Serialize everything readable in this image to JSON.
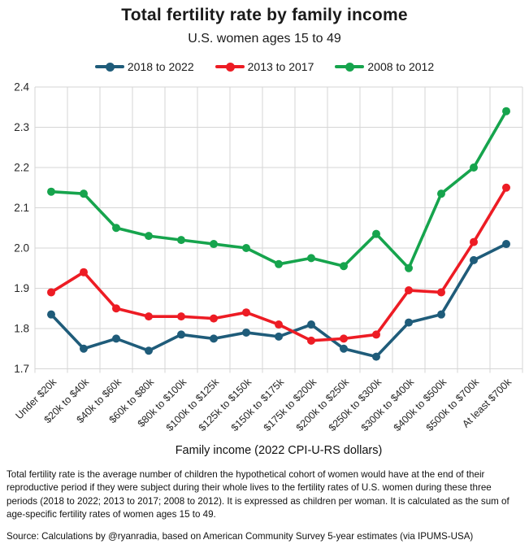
{
  "title": "Total fertility rate by family income",
  "subtitle": "U.S. women ages 15 to 49",
  "chart_data": {
    "type": "line",
    "categories": [
      "Under $20k",
      "$20k to $40k",
      "$40k to $60k",
      "$60k to $80k",
      "$80k to $100k",
      "$100k to $125k",
      "$125k to $150k",
      "$150k to $175k",
      "$175k to $200k",
      "$200k to $250k",
      "$250k to $300k",
      "$300k to $400k",
      "$400k to $500k",
      "$500k to $700k",
      "At least $700k"
    ],
    "series": [
      {
        "name": "2018 to 2022",
        "color": "#1F5C7A",
        "values": [
          1.835,
          1.75,
          1.775,
          1.745,
          1.785,
          1.775,
          1.79,
          1.78,
          1.81,
          1.75,
          1.73,
          1.815,
          1.835,
          1.97,
          2.01
        ]
      },
      {
        "name": "2013 to 2017",
        "color": "#ED1C24",
        "values": [
          1.89,
          1.94,
          1.85,
          1.83,
          1.83,
          1.825,
          1.84,
          1.81,
          1.77,
          1.775,
          1.785,
          1.895,
          1.89,
          2.015,
          2.15
        ]
      },
      {
        "name": "2008 to 2012",
        "color": "#16A44D",
        "values": [
          2.14,
          2.135,
          2.05,
          2.03,
          2.02,
          2.01,
          2.0,
          1.96,
          1.975,
          1.955,
          2.035,
          1.95,
          2.135,
          2.2,
          2.34
        ]
      }
    ],
    "xlabel": "Family income (2022 CPI-U-RS dollars)",
    "ylabel": "",
    "ylim": [
      1.7,
      2.4
    ],
    "ytick_step": 0.1,
    "ytick_labels": [
      "1.7",
      "1.8",
      "1.9",
      "2.0",
      "2.1",
      "2.2",
      "2.3",
      "2.4"
    ],
    "grid": true,
    "legend_position": "top",
    "grid_color": "#D6D6D6",
    "tick_label_color": "#262626"
  },
  "footnote": "Total fertility rate is the average number of children the hypothetical cohort of women would have at the end of their reproductive period if they were subject during their whole lives to the fertility rates of U.S. women during these three periods (2018 to 2022; 2013 to 2017; 2008 to 2012). It is expressed as children per woman. It is calculated as the sum of age-specific fertility rates of women ages 15 to 49.",
  "source": "Source: Calculations by @ryanradia, based on American Community Survey 5-year estimates (via IPUMS-USA)"
}
